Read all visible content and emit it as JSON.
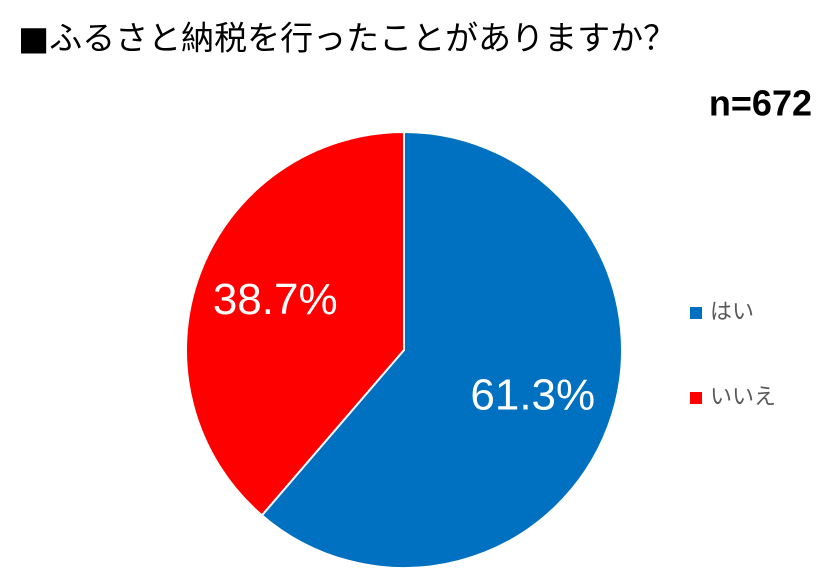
{
  "chart_data": {
    "type": "pie",
    "title": "■ふるさと納税を行ったことがありますか？",
    "subtitle": "n=672",
    "categories": [
      "はい",
      "いいえ"
    ],
    "values": [
      61.3,
      38.7
    ],
    "value_labels": [
      "61.3%",
      "38.7%"
    ],
    "colors": [
      "#0070c0",
      "#ff0000"
    ],
    "legend": "right"
  }
}
